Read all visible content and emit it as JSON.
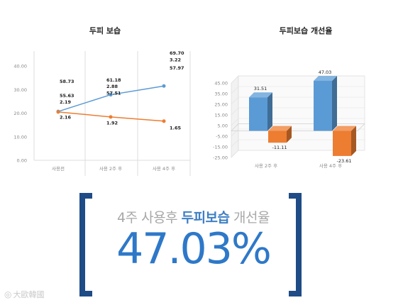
{
  "charts": [
    {
      "type": "line",
      "title": "두피 보습",
      "categories": [
        "사용전",
        "사용 2주 후",
        "사용 4주 후"
      ],
      "ylim": [
        0,
        40
      ],
      "yticks": [
        "0.00",
        "10.00",
        "20.00",
        "30.00",
        "40.00"
      ],
      "grid": "vertical",
      "series": [
        {
          "values": [
            20.7,
            27.8,
            31.5
          ],
          "color": "#5b9bd5"
        },
        {
          "values": [
            20.5,
            18.4,
            16.6
          ],
          "color": "#ed7d31"
        }
      ],
      "annotations": [
        {
          "text": "58.73",
          "x": 0,
          "y": 33.5
        },
        {
          "text": "55.63",
          "x": 0,
          "y": 27.5
        },
        {
          "text": "2.19",
          "x": 0,
          "y": 24.8
        },
        {
          "text": "2.16",
          "x": 0,
          "y": 18.4
        },
        {
          "text": "61.18",
          "x": 1,
          "y": 34.2
        },
        {
          "text": "2.88",
          "x": 1,
          "y": 31.5
        },
        {
          "text": "57.51",
          "x": 1,
          "y": 28.5
        },
        {
          "text": "1.92",
          "x": 1,
          "y": 16.0
        },
        {
          "text": "69.70",
          "x": 2,
          "y": 45.5
        },
        {
          "text": "3.22",
          "x": 2,
          "y": 42.7
        },
        {
          "text": "57.97",
          "x": 2,
          "y": 39.2
        },
        {
          "text": "1.65",
          "x": 2,
          "y": 13.8
        }
      ]
    },
    {
      "type": "bar",
      "title": "두피보습 개선율",
      "categories": [
        "사용 2주 후",
        "사용 4주 후"
      ],
      "ylim": [
        -25,
        45
      ],
      "yticks": [
        "45.00",
        "35.00",
        "25.00",
        "15.00",
        "5.00",
        "-5.00",
        "-15.00",
        "-25.00"
      ],
      "series": [
        {
          "values": [
            31.51,
            47.03
          ],
          "color": "#5b9bd5"
        },
        {
          "values": [
            -11.11,
            -23.61
          ],
          "color": "#ed7d31"
        }
      ],
      "data_labels": [
        [
          "31.51",
          "47.03"
        ],
        [
          "-11.11",
          "-23.61"
        ]
      ]
    }
  ],
  "headline": {
    "prefix": "4주 사용후 ",
    "highlight": "두피보습",
    "suffix": " 개선율"
  },
  "big_value": "47.03%",
  "watermark": "大歐韓國"
}
